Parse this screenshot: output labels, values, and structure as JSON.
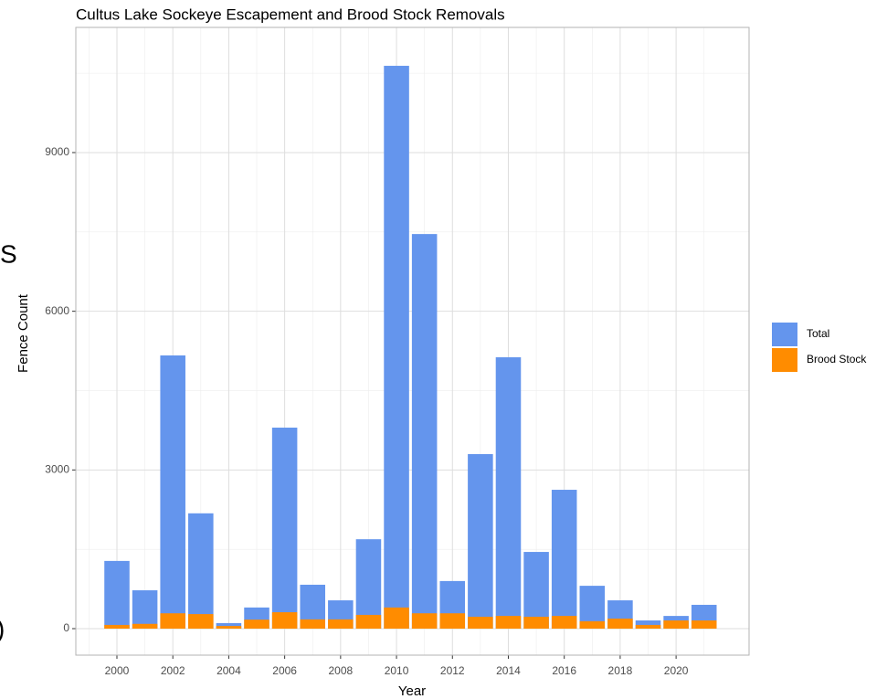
{
  "chart_data": {
    "type": "bar",
    "title": "Cultus Lake Sockeye Escapement and Brood Stock Removals",
    "x_label": "Year",
    "y_label": "Fence Count",
    "x": [
      2000,
      2001,
      2002,
      2003,
      2004,
      2005,
      2006,
      2007,
      2008,
      2009,
      2010,
      2011,
      2012,
      2013,
      2014,
      2015,
      2016,
      2017,
      2018,
      2019,
      2020,
      2021
    ],
    "series": [
      {
        "name": "Total",
        "color": "#6495ed",
        "values": [
          1280,
          725,
          5165,
          2180,
          105,
          400,
          3800,
          830,
          535,
          1690,
          10640,
          7460,
          900,
          3300,
          5130,
          1450,
          2625,
          810,
          535,
          155,
          240,
          450
        ]
      },
      {
        "name": "Brood Stock",
        "color": "#ff8c00",
        "values": [
          70,
          90,
          290,
          275,
          50,
          170,
          310,
          175,
          175,
          260,
          400,
          290,
          290,
          225,
          240,
          225,
          240,
          140,
          190,
          70,
          155,
          155
        ]
      }
    ],
    "xlim": [
      1998.53,
      2022.61
    ],
    "ylim": [
      -501,
      11366
    ],
    "xticks": [
      2000,
      2002,
      2004,
      2006,
      2008,
      2010,
      2012,
      2014,
      2016,
      2018,
      2020
    ],
    "yticks": [
      0,
      3000,
      6000,
      9000
    ],
    "grid": true,
    "legend": "right"
  },
  "clipped_text": [
    "S",
    ")"
  ]
}
